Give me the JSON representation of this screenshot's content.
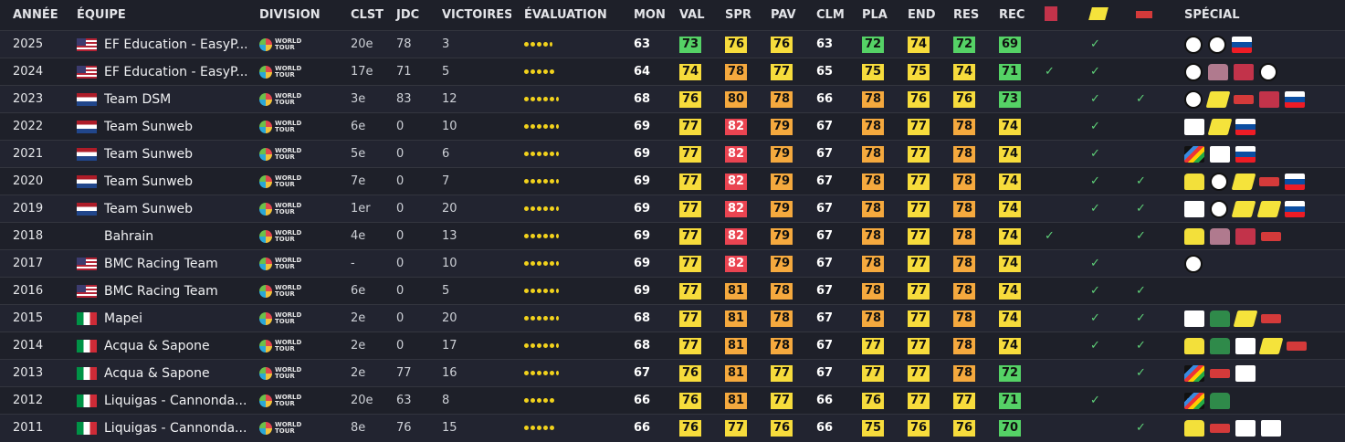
{
  "headers": {
    "year": "ANNÉE",
    "team": "ÉQUIPE",
    "division": "DIVISION",
    "clst": "CLST",
    "jdc": "JDC",
    "wins": "VICTOIRES",
    "eval": "ÉVALUATION",
    "mon": "MON",
    "val": "VAL",
    "spr": "SPR",
    "pav": "PAV",
    "clm": "CLM",
    "pla": "PLA",
    "end": "END",
    "res": "RES",
    "rec": "REC",
    "giro_icon": "giro-trophy-icon",
    "tdf_icon": "tour-de-france-icon",
    "vuelta_icon": "vuelta-icon",
    "special": "SPÉCIAL"
  },
  "division_label": "WORLD TOUR",
  "check_glyph": "✓",
  "rows": [
    {
      "year": "2025",
      "team": "EF Education - EasyP...",
      "flag": "US",
      "clst": "20e",
      "jdc": "78",
      "wins": "3",
      "eval": 4.5,
      "mon": "63",
      "val": "73",
      "spr": "76",
      "pav": "76",
      "clm": "63",
      "pla": "72",
      "end": "74",
      "res": "72",
      "rec": "69",
      "c1": "",
      "c2": "✓",
      "c3": "",
      "special": [
        "ring",
        "ring",
        "flag-sk"
      ]
    },
    {
      "year": "2024",
      "team": "EF Education - EasyP...",
      "flag": "US",
      "clst": "17e",
      "jdc": "71",
      "wins": "5",
      "eval": 5,
      "mon": "64",
      "val": "74",
      "spr": "78",
      "pav": "77",
      "clm": "65",
      "pla": "75",
      "end": "75",
      "res": "74",
      "rec": "71",
      "c1": "✓",
      "c2": "✓",
      "c3": "",
      "special": [
        "ring",
        "jersey-pink",
        "giro",
        "ring"
      ]
    },
    {
      "year": "2023",
      "team": "Team DSM",
      "flag": "NL",
      "clst": "3e",
      "jdc": "83",
      "wins": "12",
      "eval": 5.5,
      "mon": "68",
      "val": "76",
      "spr": "80",
      "pav": "78",
      "clm": "66",
      "pla": "78",
      "end": "76",
      "res": "76",
      "rec": "73",
      "c1": "",
      "c2": "✓",
      "c3": "✓",
      "special": [
        "ring",
        "tdf",
        "vuelta",
        "giro",
        "flag-sk"
      ]
    },
    {
      "year": "2022",
      "team": "Team Sunweb",
      "flag": "NL",
      "clst": "6e",
      "jdc": "0",
      "wins": "10",
      "eval": 5.5,
      "mon": "69",
      "val": "77",
      "spr": "82",
      "pav": "79",
      "clm": "67",
      "pla": "78",
      "end": "77",
      "res": "78",
      "rec": "74",
      "c1": "",
      "c2": "✓",
      "c3": "",
      "special": [
        "white",
        "tdf",
        "flag-sk"
      ]
    },
    {
      "year": "2021",
      "team": "Team Sunweb",
      "flag": "NL",
      "clst": "5e",
      "jdc": "0",
      "wins": "6",
      "eval": 5.5,
      "mon": "69",
      "val": "77",
      "spr": "82",
      "pav": "79",
      "clm": "67",
      "pla": "78",
      "end": "77",
      "res": "78",
      "rec": "74",
      "c1": "",
      "c2": "✓",
      "c3": "",
      "special": [
        "rainbow",
        "white",
        "flag-sk"
      ]
    },
    {
      "year": "2020",
      "team": "Team Sunweb",
      "flag": "NL",
      "clst": "7e",
      "jdc": "0",
      "wins": "7",
      "eval": 5.5,
      "mon": "69",
      "val": "77",
      "spr": "82",
      "pav": "79",
      "clm": "67",
      "pla": "78",
      "end": "77",
      "res": "78",
      "rec": "74",
      "c1": "",
      "c2": "✓",
      "c3": "✓",
      "special": [
        "jersey-yellow",
        "ring",
        "tdf",
        "vuelta",
        "flag-sk"
      ]
    },
    {
      "year": "2019",
      "team": "Team Sunweb",
      "flag": "NL",
      "clst": "1er",
      "jdc": "0",
      "wins": "20",
      "eval": 5.5,
      "mon": "69",
      "val": "77",
      "spr": "82",
      "pav": "79",
      "clm": "67",
      "pla": "78",
      "end": "77",
      "res": "78",
      "rec": "74",
      "c1": "",
      "c2": "✓",
      "c3": "✓",
      "special": [
        "white",
        "ring",
        "tdf",
        "tdf",
        "flag-sk"
      ]
    },
    {
      "year": "2018",
      "team": "Bahrain",
      "flag": "",
      "clst": "4e",
      "jdc": "0",
      "wins": "13",
      "eval": 5.5,
      "mon": "69",
      "val": "77",
      "spr": "82",
      "pav": "79",
      "clm": "67",
      "pla": "78",
      "end": "77",
      "res": "78",
      "rec": "74",
      "c1": "✓",
      "c2": "",
      "c3": "✓",
      "special": [
        "jersey-yellow",
        "jersey-pink",
        "giro",
        "vuelta"
      ]
    },
    {
      "year": "2017",
      "team": "BMC Racing Team",
      "flag": "US",
      "clst": "-",
      "jdc": "0",
      "wins": "10",
      "eval": 5.5,
      "mon": "69",
      "val": "77",
      "spr": "82",
      "pav": "79",
      "clm": "67",
      "pla": "78",
      "end": "77",
      "res": "78",
      "rec": "74",
      "c1": "",
      "c2": "✓",
      "c3": "",
      "special": [
        "ring"
      ]
    },
    {
      "year": "2016",
      "team": "BMC Racing Team",
      "flag": "US",
      "clst": "6e",
      "jdc": "0",
      "wins": "5",
      "eval": 5.5,
      "mon": "69",
      "val": "77",
      "spr": "81",
      "pav": "78",
      "clm": "67",
      "pla": "78",
      "end": "77",
      "res": "78",
      "rec": "74",
      "c1": "",
      "c2": "✓",
      "c3": "✓",
      "special": []
    },
    {
      "year": "2015",
      "team": "Mapei",
      "flag": "IT",
      "clst": "2e",
      "jdc": "0",
      "wins": "20",
      "eval": 5.5,
      "mon": "68",
      "val": "77",
      "spr": "81",
      "pav": "78",
      "clm": "67",
      "pla": "78",
      "end": "77",
      "res": "78",
      "rec": "74",
      "c1": "",
      "c2": "✓",
      "c3": "✓",
      "special": [
        "white",
        "jersey-green",
        "tdf",
        "vuelta"
      ]
    },
    {
      "year": "2014",
      "team": "Acqua & Sapone",
      "flag": "IT",
      "clst": "2e",
      "jdc": "0",
      "wins": "17",
      "eval": 5.5,
      "mon": "68",
      "val": "77",
      "spr": "81",
      "pav": "78",
      "clm": "67",
      "pla": "77",
      "end": "77",
      "res": "78",
      "rec": "74",
      "c1": "",
      "c2": "✓",
      "c3": "✓",
      "special": [
        "jersey-yellow",
        "jersey-green",
        "white",
        "tdf",
        "vuelta"
      ]
    },
    {
      "year": "2013",
      "team": "Acqua & Sapone",
      "flag": "IT",
      "clst": "2e",
      "jdc": "77",
      "wins": "16",
      "eval": 5.5,
      "mon": "67",
      "val": "76",
      "spr": "81",
      "pav": "77",
      "clm": "67",
      "pla": "77",
      "end": "77",
      "res": "78",
      "rec": "72",
      "c1": "",
      "c2": "",
      "c3": "✓",
      "special": [
        "rainbow",
        "vuelta",
        "white"
      ]
    },
    {
      "year": "2012",
      "team": "Liquigas - Cannonda...",
      "flag": "IT",
      "clst": "20e",
      "jdc": "63",
      "wins": "8",
      "eval": 5,
      "mon": "66",
      "val": "76",
      "spr": "81",
      "pav": "77",
      "clm": "66",
      "pla": "76",
      "end": "77",
      "res": "77",
      "rec": "71",
      "c1": "",
      "c2": "✓",
      "c3": "",
      "special": [
        "rainbow",
        "jersey-green"
      ]
    },
    {
      "year": "2011",
      "team": "Liquigas - Cannonda...",
      "flag": "IT",
      "clst": "8e",
      "jdc": "76",
      "wins": "15",
      "eval": 5,
      "mon": "66",
      "val": "76",
      "spr": "77",
      "pav": "76",
      "clm": "66",
      "pla": "75",
      "end": "76",
      "res": "76",
      "rec": "70",
      "c1": "",
      "c2": "",
      "c3": "✓",
      "special": [
        "jersey-yellow",
        "vuelta",
        "white",
        "white"
      ]
    }
  ]
}
